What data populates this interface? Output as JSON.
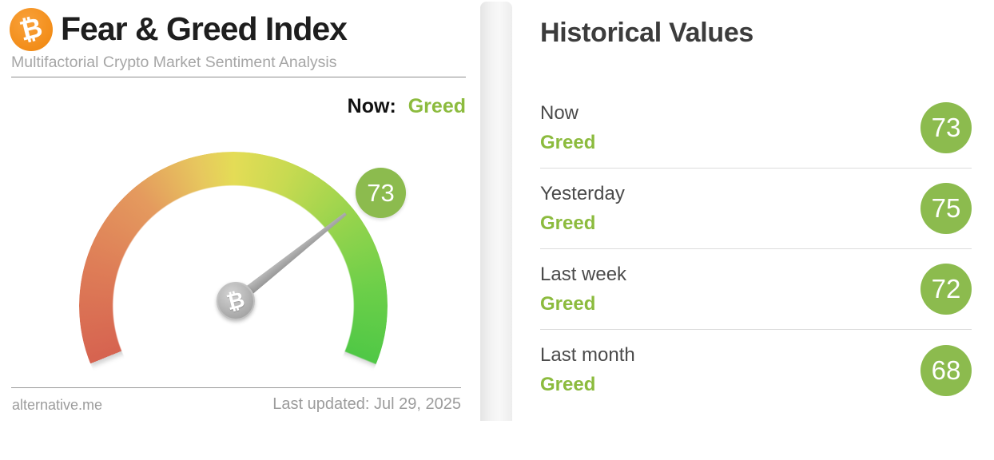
{
  "icons": {
    "bitcoin_glyph": "₿"
  },
  "colors": {
    "brand_orange": "#f28c17",
    "greed_text_green": "#8cbb3e",
    "badge_green": "#8cbb4e",
    "gauge_red": "#d66350",
    "gauge_yellow": "#e4dc56",
    "gauge_green": "#50c846",
    "needle_gray": "#a4a4a4"
  },
  "left_panel": {
    "title": "Fear & Greed Index",
    "subtitle": "Multifactorial Crypto Market Sentiment Analysis",
    "now_label": "Now:",
    "now_value": "Greed",
    "footer": {
      "site": "alternative.me",
      "last_updated": "Last updated: Jul 29, 2025"
    }
  },
  "right_panel": {
    "title": "Historical Values",
    "rows": [
      {
        "label": "Now",
        "classification": "Greed",
        "value": "73"
      },
      {
        "label": "Yesterday",
        "classification": "Greed",
        "value": "75"
      },
      {
        "label": "Last week",
        "classification": "Greed",
        "value": "72"
      },
      {
        "label": "Last month",
        "classification": "Greed",
        "value": "68"
      }
    ]
  },
  "chart_data": {
    "type": "gauge",
    "title": "Fear & Greed Index",
    "value": 73,
    "min": 0,
    "max": 100,
    "classification": "Greed",
    "arc_sweep_deg": 224,
    "color_scale": [
      "#d66350",
      "#e49a5e",
      "#e4dc56",
      "#9ad44d",
      "#50c846"
    ],
    "historical": [
      {
        "label": "Now",
        "value": 73,
        "classification": "Greed"
      },
      {
        "label": "Yesterday",
        "value": 75,
        "classification": "Greed"
      },
      {
        "label": "Last week",
        "value": 72,
        "classification": "Greed"
      },
      {
        "label": "Last month",
        "value": 68,
        "classification": "Greed"
      }
    ]
  }
}
